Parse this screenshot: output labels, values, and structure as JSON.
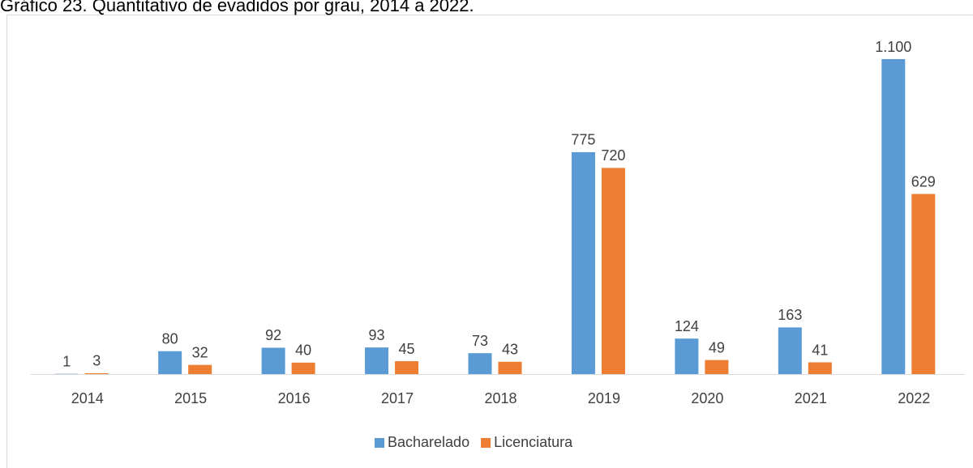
{
  "chart_data": {
    "type": "bar",
    "title": "Gráfico 23. Quantitativo de evadidos por grau, 2014 a 2022.",
    "categories": [
      "2014",
      "2015",
      "2016",
      "2017",
      "2018",
      "2019",
      "2020",
      "2021",
      "2022"
    ],
    "series": [
      {
        "name": "Bacharelado",
        "color": "#5b9bd5",
        "values": [
          1,
          80,
          92,
          93,
          73,
          775,
          124,
          163,
          1100
        ],
        "value_labels": [
          "1",
          "80",
          "92",
          "93",
          "73",
          "775",
          "124",
          "163",
          "1.100"
        ]
      },
      {
        "name": "Licenciatura",
        "color": "#ed7d31",
        "values": [
          3,
          32,
          40,
          45,
          43,
          720,
          49,
          41,
          629
        ]
      }
    ],
    "ylim": [
      0,
      1100
    ],
    "legend": "bottom"
  }
}
